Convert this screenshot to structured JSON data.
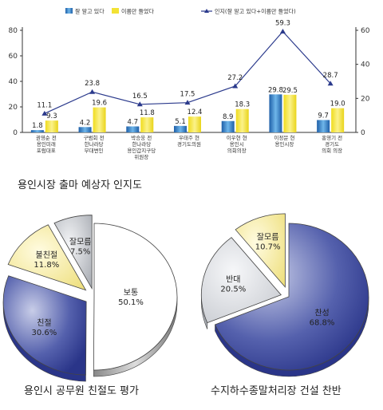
{
  "chart_data": [
    {
      "type": "bar",
      "title": "용인시장 출마 예상자 인지도",
      "categories": [
        [
          "권영순 전",
          "용인미래",
          "포럼대표"
        ],
        [
          "구범회 전",
          "한나라당",
          "부대변인"
        ],
        [
          "박승웅 전",
          "한나라당",
          "용인갑지구당",
          "위원장"
        ],
        [
          "우태주 현",
          "경기도의원"
        ],
        [
          "이우현 현",
          "용인시",
          "의회의장"
        ],
        [
          "이정문 현",
          "용인시장"
        ],
        [
          "홍영기 전",
          "경기도",
          "의회 의장"
        ]
      ],
      "series": [
        {
          "name": "잘 알고 있다",
          "values": [
            1.8,
            4.2,
            4.7,
            5.1,
            8.9,
            29.8,
            9.7
          ],
          "axis": "left",
          "color": "#3f8fd0"
        },
        {
          "name": "이름만 들었다",
          "values": [
            9.3,
            19.6,
            11.8,
            12.4,
            18.3,
            29.5,
            19.0
          ],
          "axis": "left",
          "color": "#f3e234"
        },
        {
          "name": "인지(잘 알고 있다+이름만 들었다)",
          "values": [
            11.1,
            23.8,
            16.5,
            17.5,
            27.2,
            59.3,
            28.7
          ],
          "axis": "right",
          "type": "line",
          "color": "#2b3a8c"
        }
      ],
      "y_left": {
        "ticks": [
          0,
          20,
          40,
          60,
          80
        ],
        "lim": [
          0,
          80
        ]
      },
      "y_right": {
        "ticks": [
          0,
          20,
          40,
          60
        ],
        "lim": [
          0,
          60
        ]
      },
      "legend": "top",
      "grid": false
    },
    {
      "type": "pie",
      "title": "용인시 공무원 친절도 평가",
      "slices": [
        {
          "label": "보통",
          "value": 50.1,
          "value_text": "50.1%",
          "color": "#ffffff"
        },
        {
          "label": "친절",
          "value": 30.6,
          "value_text": "30.6%",
          "color": "#3d49a0"
        },
        {
          "label": "불친절",
          "value": 11.8,
          "value_text": "11.8%",
          "color": "#f3e79a"
        },
        {
          "label": "잘모름",
          "value": 7.5,
          "value_text": "7.5%",
          "color": "#b3b6bc"
        }
      ]
    },
    {
      "type": "pie",
      "title": "수지하수종말처리장 건설 찬반",
      "slices": [
        {
          "label": "찬성",
          "value": 68.8,
          "value_text": "68.8%",
          "color": "#3d49a0"
        },
        {
          "label": "반대",
          "value": 20.5,
          "value_text": "20.5%",
          "color": "#d4d7dc"
        },
        {
          "label": "잘모름",
          "value": 10.7,
          "value_text": "10.7%",
          "color": "#f3e79a"
        }
      ]
    }
  ]
}
